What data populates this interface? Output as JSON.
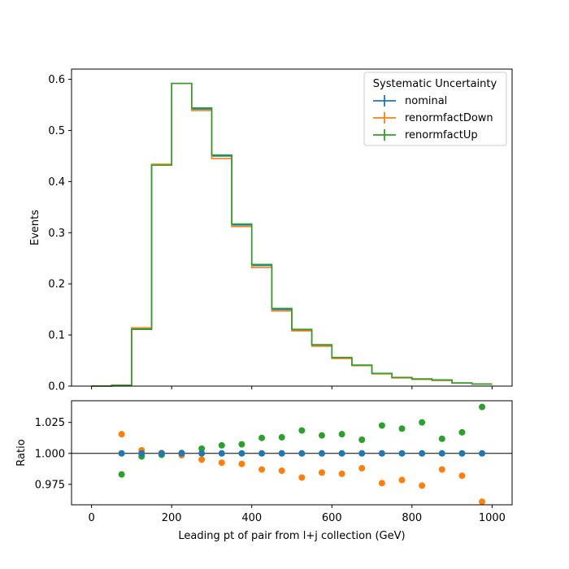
{
  "chart_data": [
    {
      "type": "step",
      "panel": "main",
      "xlabel": "",
      "ylabel": "Events",
      "xlim": [
        -50,
        1050
      ],
      "ylim": [
        0,
        0.62
      ],
      "yticks": [
        0.0,
        0.1,
        0.2,
        0.3,
        0.4,
        0.5,
        0.6
      ],
      "ytick_labels": [
        "0.0",
        "0.1",
        "0.2",
        "0.3",
        "0.4",
        "0.5",
        "0.6"
      ],
      "bin_edges": [
        0,
        50,
        100,
        150,
        200,
        250,
        300,
        350,
        400,
        450,
        500,
        550,
        600,
        650,
        700,
        750,
        800,
        850,
        900,
        950,
        1000
      ],
      "legend": {
        "title": "Systematic Uncertainty",
        "location": "upper-right"
      },
      "series": [
        {
          "name": "nominal",
          "color": "#1f77b4",
          "values": [
            0.0,
            0.0015,
            0.113,
            0.433,
            0.592,
            0.542,
            0.45,
            0.315,
            0.236,
            0.15,
            0.11,
            0.08,
            0.055,
            0.041,
            0.025,
            0.017,
            0.014,
            0.012,
            0.006,
            0.004
          ]
        },
        {
          "name": "renormfactDown",
          "color": "#ff7f0e",
          "values": [
            0.0,
            0.0015,
            0.114,
            0.434,
            0.592,
            0.539,
            0.445,
            0.312,
            0.232,
            0.147,
            0.108,
            0.078,
            0.054,
            0.04,
            0.024,
            0.016,
            0.013,
            0.011,
            0.006,
            0.004
          ]
        },
        {
          "name": "renormfactUp",
          "color": "#2ca02c",
          "values": [
            0.0,
            0.0015,
            0.111,
            0.432,
            0.592,
            0.544,
            0.452,
            0.317,
            0.238,
            0.152,
            0.111,
            0.081,
            0.056,
            0.041,
            0.025,
            0.017,
            0.014,
            0.012,
            0.006,
            0.004
          ]
        }
      ]
    },
    {
      "type": "scatter",
      "panel": "ratio",
      "xlabel": "Leading pt of pair from l+j collection (GeV)",
      "ylabel": "Ratio",
      "xlim": [
        -50,
        1050
      ],
      "ylim": [
        0.9585,
        1.0425
      ],
      "xticks": [
        0,
        200,
        400,
        600,
        800,
        1000
      ],
      "xtick_labels": [
        "0",
        "200",
        "400",
        "600",
        "800",
        "1000"
      ],
      "yticks": [
        0.975,
        1.0,
        1.025
      ],
      "ytick_labels": [
        "0.975",
        "1.000",
        "1.025"
      ],
      "reference_line": 1.0,
      "x": [
        75,
        125,
        175,
        225,
        275,
        325,
        375,
        425,
        475,
        525,
        575,
        625,
        675,
        725,
        775,
        825,
        875,
        925,
        975
      ],
      "series": [
        {
          "name": "nominal",
          "color": "#1f77b4",
          "values": [
            1.0,
            1.0,
            1.0,
            1.0,
            1.0,
            1.0,
            1.0,
            1.0,
            1.0,
            1.0,
            1.0,
            1.0,
            1.0,
            1.0,
            1.0,
            1.0,
            1.0,
            1.0,
            1.0
          ]
        },
        {
          "name": "renormfactDown",
          "color": "#ff7f0e",
          "values": [
            1.0155,
            1.0025,
            1.0003,
            0.9985,
            0.995,
            0.9925,
            0.9915,
            0.987,
            0.986,
            0.9805,
            0.9845,
            0.9835,
            0.988,
            0.976,
            0.9785,
            0.974,
            0.987,
            0.982,
            0.961
          ]
        },
        {
          "name": "renormfactUp",
          "color": "#2ca02c",
          "values": [
            0.983,
            0.9975,
            0.9988,
            1.0003,
            1.0038,
            1.0065,
            1.0073,
            1.0125,
            1.013,
            1.0185,
            1.0145,
            1.0155,
            1.011,
            1.0225,
            1.02,
            1.025,
            1.0118,
            1.017,
            1.0375
          ]
        }
      ]
    }
  ]
}
